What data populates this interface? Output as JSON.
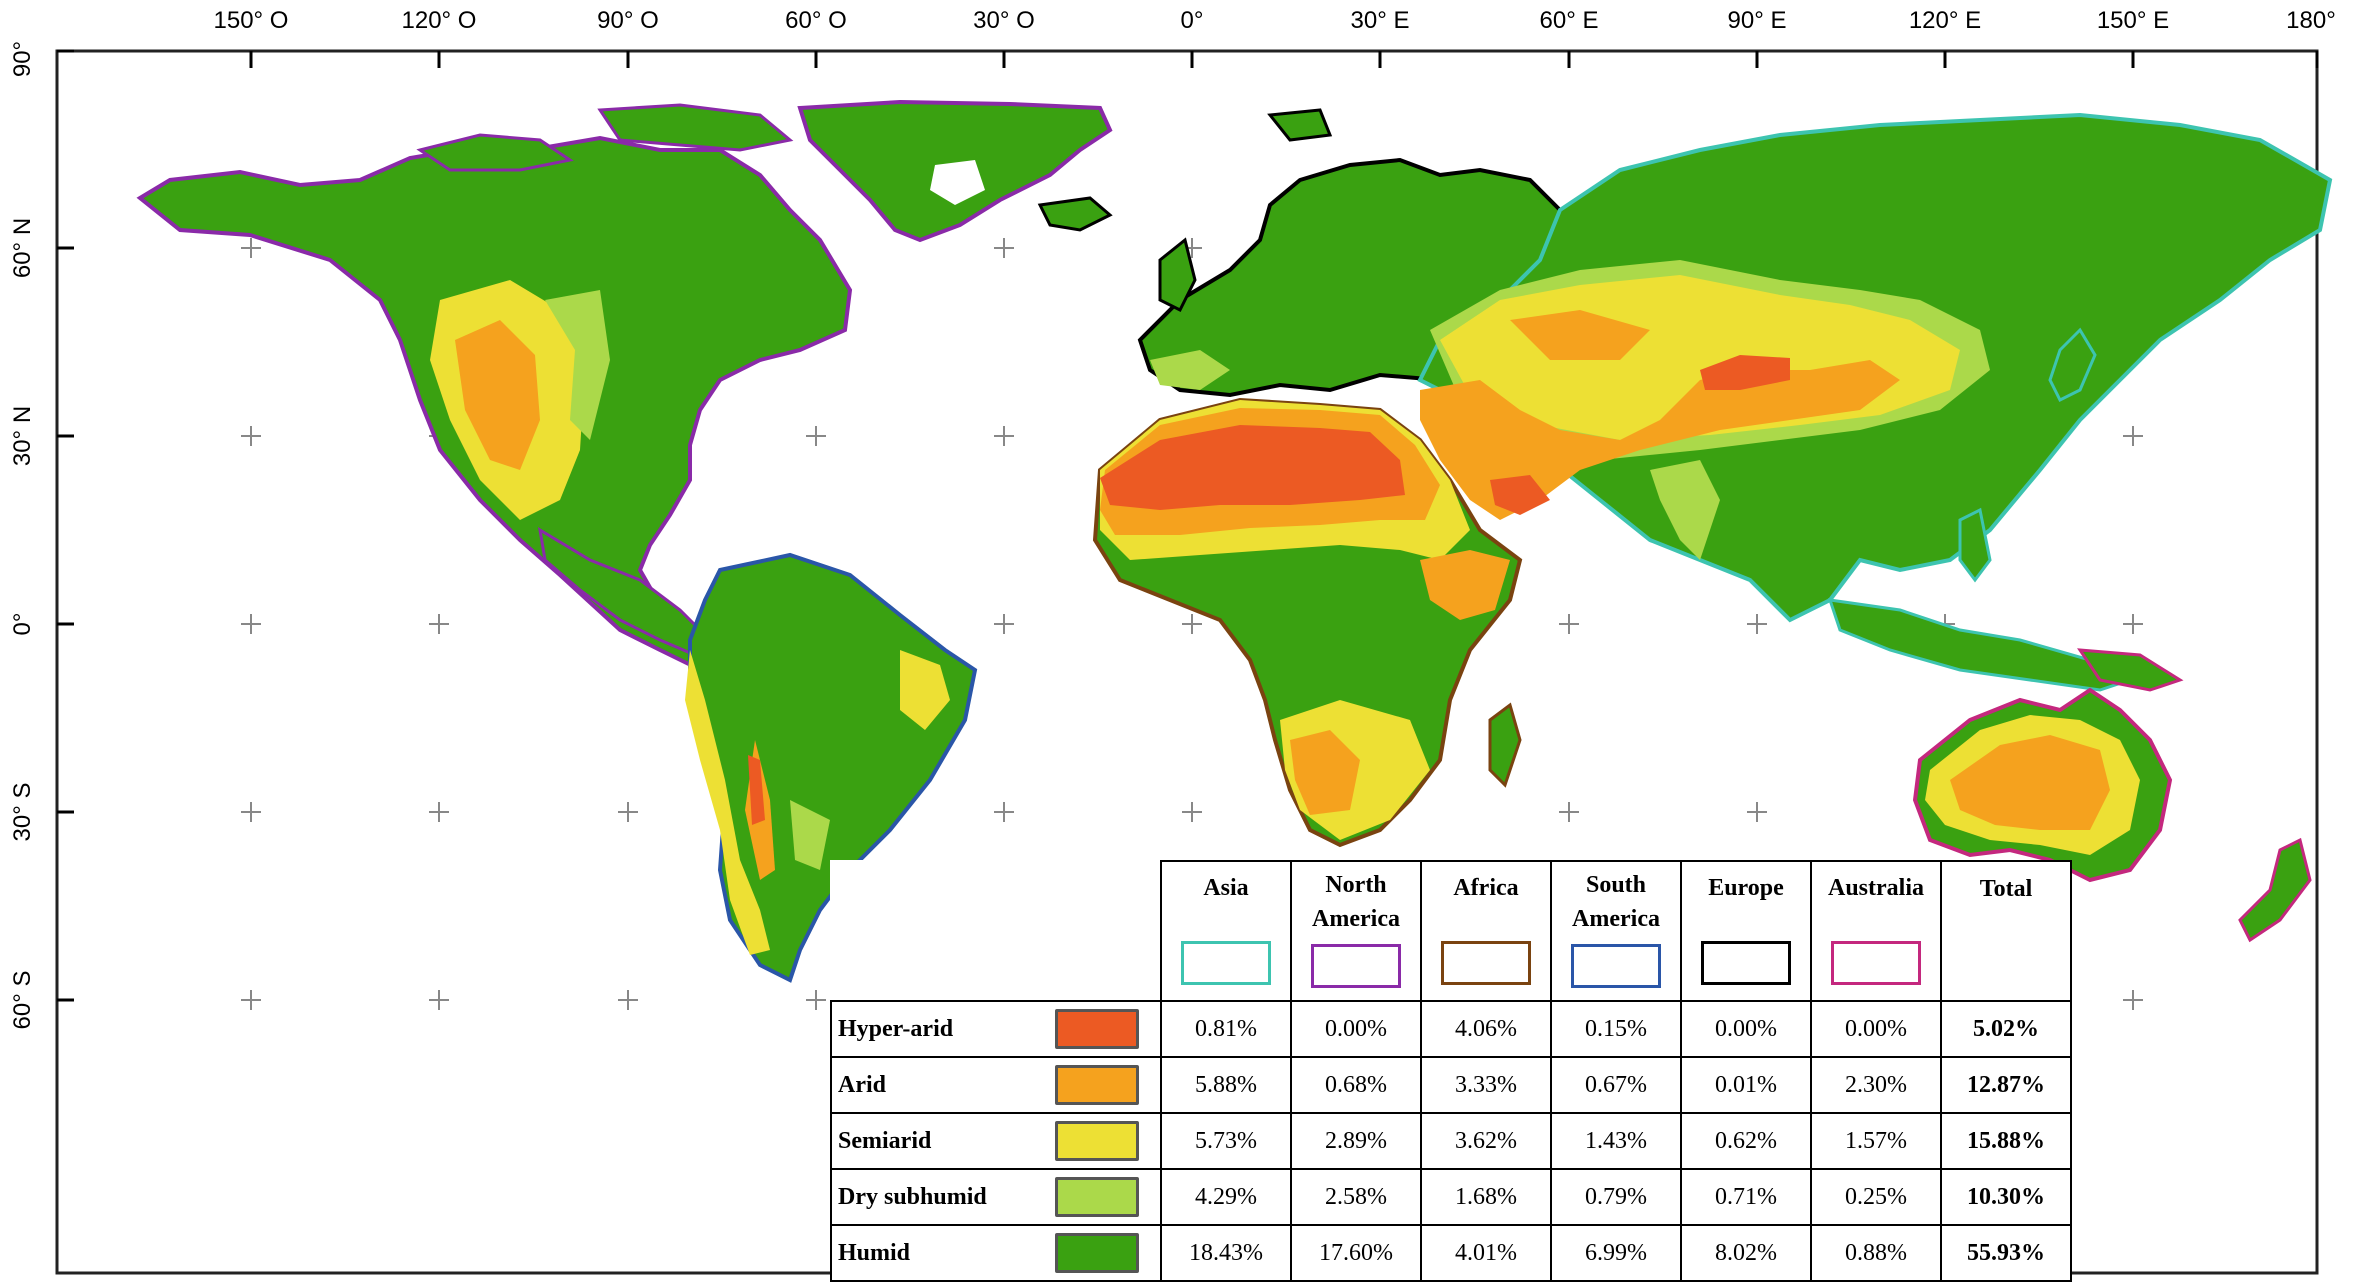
{
  "axes": {
    "longitude_labels": [
      "150° O",
      "120° O",
      "90° O",
      "60° O",
      "30° O",
      "0°",
      "30° E",
      "60° E",
      "90° E",
      "120° E",
      "150° E",
      "180°"
    ],
    "latitude_labels": [
      "90°",
      "60° N",
      "30° N",
      "0°",
      "30° S",
      "60° S"
    ]
  },
  "colors": {
    "hyper_arid": "#ec5a23",
    "arid": "#f5a21e",
    "semiarid": "#ede034",
    "dry_subhumid": "#abd94a",
    "humid": "#3aa111",
    "asia_outline": "#3dc4b0",
    "north_america_outline": "#8a2aa8",
    "africa_outline": "#7a4310",
    "south_america_outline": "#2a56a8",
    "europe_outline": "#000000",
    "australia_outline": "#c4287e"
  },
  "legend": {
    "columns": [
      {
        "label": "Asia",
        "outline": "#3dc4b0"
      },
      {
        "label": "North America",
        "outline": "#8a2aa8"
      },
      {
        "label": "Africa",
        "outline": "#7a4310"
      },
      {
        "label": "South America",
        "outline": "#2a56a8"
      },
      {
        "label": "Europe",
        "outline": "#000000"
      },
      {
        "label": "Australia",
        "outline": "#c4287e"
      }
    ],
    "total_label": "Total",
    "rows": [
      {
        "label": "Hyper-arid",
        "color": "#ec5a23",
        "values": [
          "0.81%",
          "0.00%",
          "4.06%",
          "0.15%",
          "0.00%",
          "0.00%"
        ],
        "total": "5.02%"
      },
      {
        "label": "Arid",
        "color": "#f5a21e",
        "values": [
          "5.88%",
          "0.68%",
          "3.33%",
          "0.67%",
          "0.01%",
          "2.30%"
        ],
        "total": "12.87%"
      },
      {
        "label": "Semiarid",
        "color": "#ede034",
        "values": [
          "5.73%",
          "2.89%",
          "3.62%",
          "1.43%",
          "0.62%",
          "1.57%"
        ],
        "total": "15.88%"
      },
      {
        "label": "Dry subhumid",
        "color": "#abd94a",
        "values": [
          "4.29%",
          "2.58%",
          "1.68%",
          "0.79%",
          "0.71%",
          "0.25%"
        ],
        "total": "10.30%"
      },
      {
        "label": "Humid",
        "color": "#3aa111",
        "values": [
          "18.43%",
          "17.60%",
          "4.01%",
          "6.99%",
          "8.02%",
          "0.88%"
        ],
        "total": "55.93%"
      }
    ]
  }
}
